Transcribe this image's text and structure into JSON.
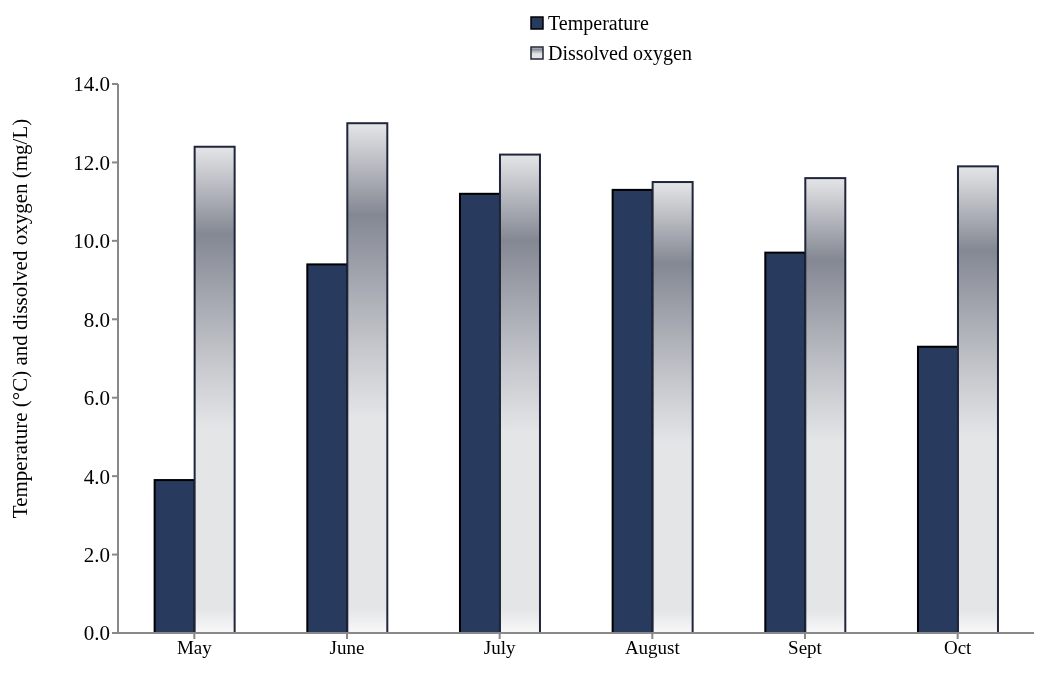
{
  "chart_data": {
    "type": "bar",
    "ylabel": "Temperature (°C) and dissolved oxygen (mg/L)",
    "categories": [
      "May",
      "June",
      "July",
      "August",
      "Sept",
      "Oct"
    ],
    "series": [
      {
        "name": "Temperature",
        "color": "#283a5e",
        "values": [
          3.9,
          9.4,
          11.2,
          11.3,
          9.7,
          7.3
        ]
      },
      {
        "name": "Dissolved oxygen",
        "color": "#20263a",
        "values": [
          12.4,
          13.0,
          12.2,
          11.5,
          11.6,
          11.9
        ]
      }
    ],
    "ylim": [
      0,
      14
    ],
    "yticks": [
      {
        "value": 0,
        "label": "0.0"
      },
      {
        "value": 2,
        "label": "2.0"
      },
      {
        "value": 4,
        "label": "4.0"
      },
      {
        "value": 6,
        "label": "6.0"
      },
      {
        "value": 8,
        "label": "8.0"
      },
      {
        "value": 10,
        "label": "10.0"
      },
      {
        "value": 12,
        "label": "12.0"
      },
      {
        "value": 14,
        "label": "14.0"
      }
    ],
    "grid": false,
    "legend": "top right"
  }
}
